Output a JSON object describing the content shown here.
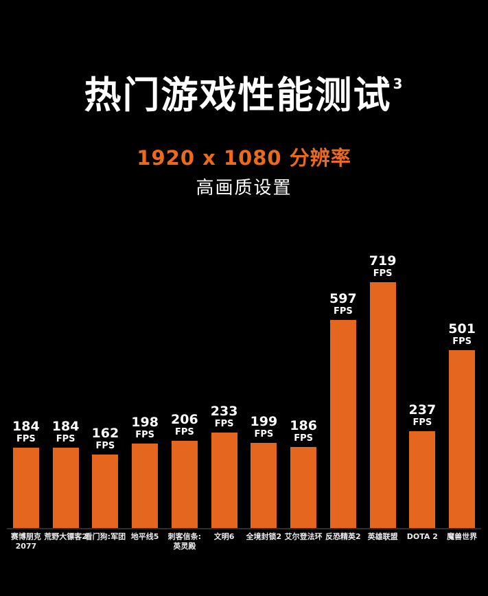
{
  "page": {
    "background": "#000000"
  },
  "header": {
    "title": "热门游戏性能测试",
    "title_superscript": "3",
    "subtitle_resolution": "1920 x 1080 分辨率",
    "subtitle_quality": "高画质设置"
  },
  "colors": {
    "background": "#000000",
    "bar": "#E5661E",
    "accent_text": "#ED6A1C",
    "primary_text": "#FFFFFF",
    "axis_line": "#2E2E2E"
  },
  "chart_data": {
    "type": "bar",
    "title": "热门游戏性能测试",
    "title_footnote_marker": "3",
    "subtitle_lines": [
      "1920 x 1080 分辨率",
      "高画质设置"
    ],
    "unit": "FPS",
    "categories": [
      "赛博朋克\n2077",
      "荒野大镖客2",
      "看门狗:军团",
      "地平线5",
      "刺客信条:\n英灵殿",
      "文明6",
      "全境封锁2",
      "艾尔登法环",
      "反恐精英2",
      "英雄联盟",
      "DOTA 2",
      "魔兽世界"
    ],
    "values": [
      184,
      184,
      162,
      198,
      206,
      233,
      199,
      186,
      597,
      719,
      237,
      501
    ],
    "value_label_suffix": "FPS",
    "bar_color": "#E5661E",
    "background": "#000000",
    "grid": false,
    "legend": false,
    "value_labels_above_bars": true,
    "ylim": [
      0,
      750
    ]
  }
}
